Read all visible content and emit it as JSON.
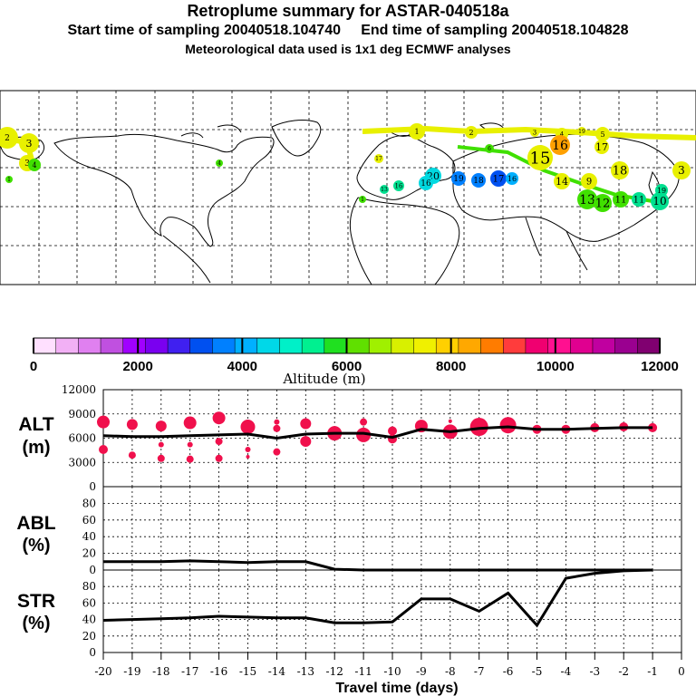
{
  "titles": {
    "line1": "Retroplume summary for ASTAR-040518a",
    "line2": "Start time of sampling 20040518.104740     End time of sampling 20040518.104828",
    "line3": "Meteorological data used is 1x1 deg ECMWF analyses"
  },
  "colorbar": {
    "ticks": [
      "0",
      "2000",
      "4000",
      "6000",
      "8000",
      "10000",
      "12000"
    ],
    "label": "Altitude (m)",
    "colors": [
      "#ffe0ff",
      "#f2b0f5",
      "#e080f0",
      "#c050e0",
      "#a000ff",
      "#7a00f0",
      "#4020f0",
      "#0050f0",
      "#0080ff",
      "#00b0ff",
      "#00d8e8",
      "#00f0c8",
      "#00f090",
      "#20e020",
      "#60e000",
      "#a0f000",
      "#d8f000",
      "#f0f000",
      "#ffd000",
      "#ffa800",
      "#ff7c00",
      "#ff3c3c",
      "#f00070",
      "#ff1090",
      "#e00090",
      "#c000a0",
      "#9a0090",
      "#800070"
    ]
  },
  "map": {
    "point_labels": [
      "1",
      "2",
      "3",
      "4",
      "5",
      "6",
      "7",
      "8",
      "9",
      "10",
      "11",
      "12",
      "13",
      "14",
      "15",
      "16",
      "17",
      "18",
      "19",
      "20"
    ]
  },
  "panels": {
    "alt": {
      "label_top": "ALT",
      "label_bot": "(m)"
    },
    "abl": {
      "label_top": "ABL",
      "label_bot": "(%)"
    },
    "str": {
      "label_top": "STR",
      "label_bot": "(%)"
    }
  },
  "xaxis": {
    "label": "Travel time (days)",
    "ticks": [
      "-20",
      "-19",
      "-18",
      "-17",
      "-16",
      "-15",
      "-14",
      "-13",
      "-12",
      "-11",
      "-10",
      "-9",
      "-8",
      "-7",
      "-6",
      "-5",
      "-4",
      "-3",
      "-2",
      "-1",
      "0"
    ]
  },
  "chart_data": [
    {
      "type": "scatter",
      "title": "ALT",
      "ylabel": "ALT (m)",
      "xlabel": "Travel time (days)",
      "xlim": [
        -20,
        0
      ],
      "ylim": [
        0,
        12000
      ],
      "yticks": [
        "0",
        "3000",
        "6000",
        "9000",
        "12000"
      ],
      "line": {
        "x": [
          -20,
          -19,
          -18,
          -17,
          -16,
          -15,
          -14,
          -13,
          -12,
          -11,
          -10,
          -9,
          -8,
          -7,
          -6,
          -5,
          -4,
          -3,
          -2,
          -1
        ],
        "y": [
          6300,
          6200,
          6200,
          6300,
          6400,
          6500,
          6000,
          6500,
          6600,
          6600,
          6100,
          7100,
          6800,
          7200,
          7400,
          7100,
          7100,
          7200,
          7300,
          7300
        ]
      },
      "clusters": [
        {
          "x": -20,
          "y": 8000,
          "r": 7
        },
        {
          "x": -20,
          "y": 4600,
          "r": 5
        },
        {
          "x": -19,
          "y": 7700,
          "r": 6
        },
        {
          "x": -19,
          "y": 3900,
          "r": 4
        },
        {
          "x": -18,
          "y": 7500,
          "r": 6
        },
        {
          "x": -18,
          "y": 5200,
          "r": 3
        },
        {
          "x": -18,
          "y": 3500,
          "r": 4
        },
        {
          "x": -17,
          "y": 7900,
          "r": 7
        },
        {
          "x": -17,
          "y": 5200,
          "r": 3
        },
        {
          "x": -17,
          "y": 3400,
          "r": 4
        },
        {
          "x": -16,
          "y": 8500,
          "r": 7
        },
        {
          "x": -16,
          "y": 5600,
          "r": 4
        },
        {
          "x": -16,
          "y": 3500,
          "r": 4
        },
        {
          "x": -15,
          "y": 7400,
          "r": 8
        },
        {
          "x": -15,
          "y": 4600,
          "r": 3
        },
        {
          "x": -15,
          "y": 3700,
          "r": 2
        },
        {
          "x": -14,
          "y": 8000,
          "r": 3
        },
        {
          "x": -14,
          "y": 7200,
          "r": 4
        },
        {
          "x": -14,
          "y": 4300,
          "r": 4
        },
        {
          "x": -13,
          "y": 7800,
          "r": 6
        },
        {
          "x": -13,
          "y": 5600,
          "r": 6
        },
        {
          "x": -12,
          "y": 6600,
          "r": 8
        },
        {
          "x": -11,
          "y": 8000,
          "r": 4
        },
        {
          "x": -11,
          "y": 6400,
          "r": 8
        },
        {
          "x": -10,
          "y": 6900,
          "r": 5
        },
        {
          "x": -10,
          "y": 5900,
          "r": 5
        },
        {
          "x": -9,
          "y": 7500,
          "r": 7
        },
        {
          "x": -8,
          "y": 6800,
          "r": 8
        },
        {
          "x": -8,
          "y": 8100,
          "r": 2
        },
        {
          "x": -7,
          "y": 7400,
          "r": 10
        },
        {
          "x": -6,
          "y": 7600,
          "r": 9
        },
        {
          "x": -5,
          "y": 7100,
          "r": 5
        },
        {
          "x": -4,
          "y": 7100,
          "r": 5
        },
        {
          "x": -3,
          "y": 7300,
          "r": 5
        },
        {
          "x": -2,
          "y": 7400,
          "r": 5
        },
        {
          "x": -1,
          "y": 7300,
          "r": 5
        }
      ]
    },
    {
      "type": "line",
      "title": "ABL",
      "ylabel": "ABL (%)",
      "xlim": [
        -20,
        0
      ],
      "ylim": [
        0,
        100
      ],
      "yticks": [
        "0",
        "20",
        "40",
        "60",
        "80"
      ],
      "x": [
        -20,
        -19,
        -18,
        -17,
        -16,
        -15,
        -14,
        -13,
        -12,
        -11,
        -10,
        -9,
        -8,
        -7,
        -6,
        -5,
        -4,
        -3,
        -2,
        -1
      ],
      "y": [
        10,
        10,
        10,
        11,
        10,
        9,
        10,
        10,
        1,
        0,
        0,
        0,
        0,
        0,
        0,
        0,
        0,
        0,
        0,
        0
      ]
    },
    {
      "type": "line",
      "title": "STR",
      "ylabel": "STR (%)",
      "xlim": [
        -20,
        0
      ],
      "ylim": [
        0,
        100
      ],
      "yticks": [
        "0",
        "20",
        "40",
        "60",
        "80"
      ],
      "x": [
        -20,
        -19,
        -18,
        -17,
        -16,
        -15,
        -14,
        -13,
        -12,
        -11,
        -10,
        -9,
        -8,
        -7,
        -6,
        -5,
        -4,
        -3,
        -2,
        -1
      ],
      "y": [
        39,
        40,
        41,
        42,
        44,
        43,
        42,
        42,
        36,
        36,
        37,
        65,
        65,
        50,
        72,
        33,
        90,
        96,
        99,
        100
      ]
    }
  ]
}
